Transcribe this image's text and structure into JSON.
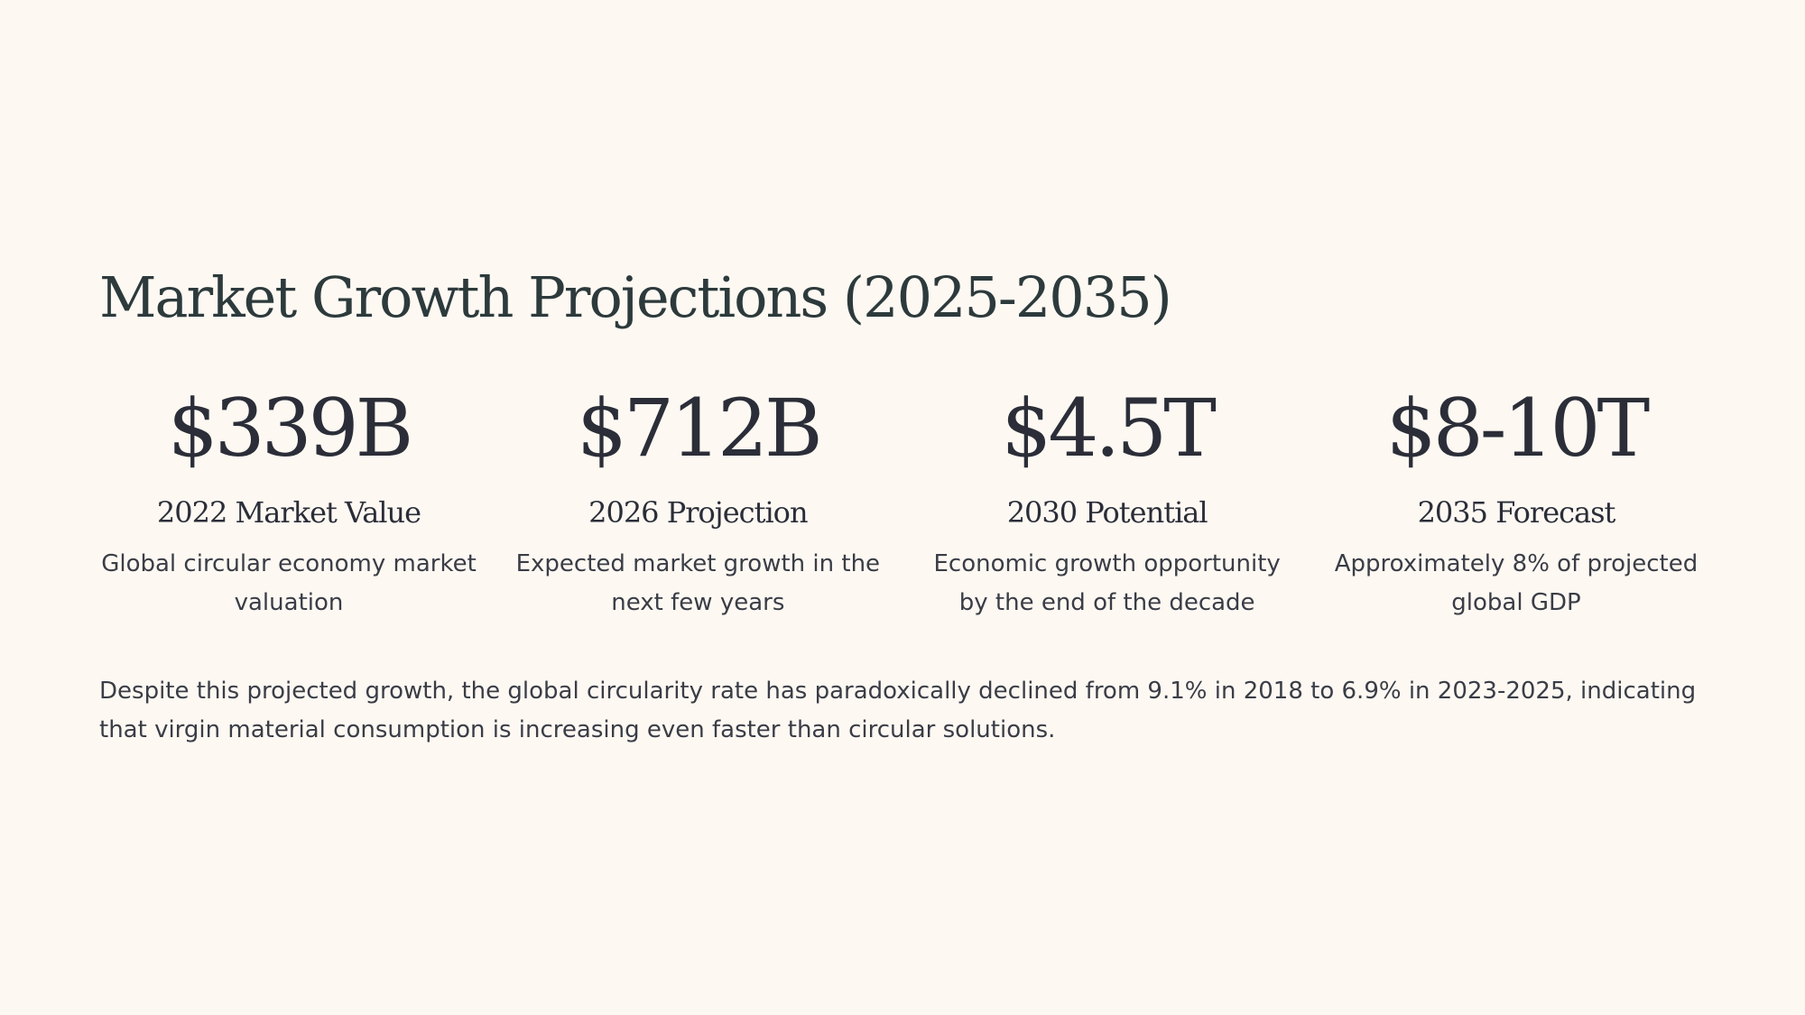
{
  "slide": {
    "title": "Market Growth Projections (2025-2035)",
    "stats": [
      {
        "value": "$339B",
        "label": "2022 Market Value",
        "description": "Global circular economy market valuation"
      },
      {
        "value": "$712B",
        "label": "2026 Projection",
        "description": "Expected market growth in the next few years"
      },
      {
        "value": "$4.5T",
        "label": "2030 Potential",
        "description": "Economic growth opportunity by the end of the decade"
      },
      {
        "value": "$8-10T",
        "label": "2035 Forecast",
        "description": "Approximately 8% of projected global GDP"
      }
    ],
    "summary": "Despite this projected growth, the global circularity rate has paradoxically declined from 9.1% in 2018 to 6.9% in 2023-2025, indicating that virgin material consumption is increasing even faster than circular solutions."
  },
  "colors": {
    "background": "#fdf8f2",
    "title": "#2d3a3c",
    "text": "#2b2e38"
  }
}
